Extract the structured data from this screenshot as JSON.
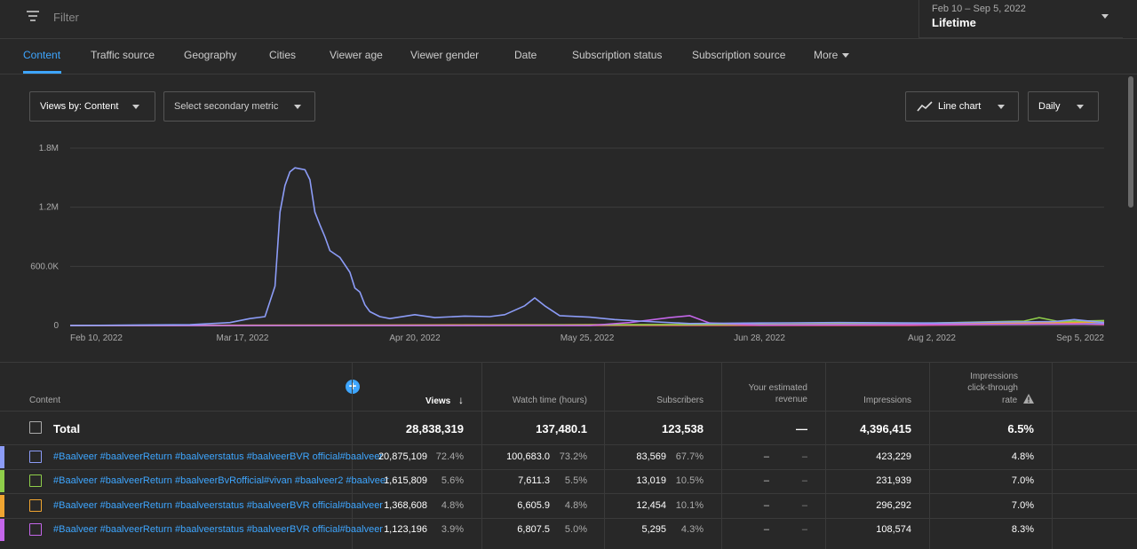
{
  "topbar": {
    "filter_placeholder": "Filter",
    "date_range": "Feb 10 – Sep 5, 2022",
    "date_label": "Lifetime"
  },
  "tabs": [
    {
      "label": "Content",
      "active": true
    },
    {
      "label": "Traffic source"
    },
    {
      "label": "Geography"
    },
    {
      "label": "Cities"
    },
    {
      "label": "Viewer age"
    },
    {
      "label": "Viewer gender"
    },
    {
      "label": "Date"
    },
    {
      "label": "Subscription status"
    },
    {
      "label": "Subscription source"
    },
    {
      "label": "More"
    }
  ],
  "controls": {
    "views_by": "Views by: Content",
    "secondary_metric": "Select secondary metric",
    "chart_type": "Line chart",
    "interval": "Daily"
  },
  "chart_data": {
    "type": "line",
    "y_ticks": [
      "1.8M",
      "1.2M",
      "600.0K",
      "0"
    ],
    "ylim": [
      0,
      1800000
    ],
    "x_tick_labels": [
      "Feb 10, 2022",
      "Mar 17, 2022",
      "Apr 20, 2022",
      "May 25, 2022",
      "Jun 28, 2022",
      "Aug 2, 2022",
      "Sep 5, 2022"
    ],
    "series": [
      {
        "color": "#8c9cf7",
        "points": [
          [
            "2022-02-10",
            0
          ],
          [
            "2022-02-24",
            5000
          ],
          [
            "2022-03-06",
            8000
          ],
          [
            "2022-03-14",
            30000
          ],
          [
            "2022-03-18",
            70000
          ],
          [
            "2022-03-21",
            90000
          ],
          [
            "2022-03-23",
            400000
          ],
          [
            "2022-03-24",
            1150000
          ],
          [
            "2022-03-25",
            1420000
          ],
          [
            "2022-03-26",
            1560000
          ],
          [
            "2022-03-27",
            1600000
          ],
          [
            "2022-03-28",
            1590000
          ],
          [
            "2022-03-29",
            1580000
          ],
          [
            "2022-03-30",
            1480000
          ],
          [
            "2022-03-31",
            1150000
          ],
          [
            "2022-04-01",
            1020000
          ],
          [
            "2022-04-02",
            900000
          ],
          [
            "2022-04-03",
            760000
          ],
          [
            "2022-04-05",
            690000
          ],
          [
            "2022-04-07",
            540000
          ],
          [
            "2022-04-08",
            380000
          ],
          [
            "2022-04-09",
            340000
          ],
          [
            "2022-04-10",
            210000
          ],
          [
            "2022-04-11",
            140000
          ],
          [
            "2022-04-13",
            90000
          ],
          [
            "2022-04-15",
            70000
          ],
          [
            "2022-04-20",
            110000
          ],
          [
            "2022-04-24",
            80000
          ],
          [
            "2022-04-30",
            95000
          ],
          [
            "2022-05-05",
            90000
          ],
          [
            "2022-05-08",
            110000
          ],
          [
            "2022-05-12",
            200000
          ],
          [
            "2022-05-14",
            280000
          ],
          [
            "2022-05-16",
            200000
          ],
          [
            "2022-05-19",
            100000
          ],
          [
            "2022-05-25",
            85000
          ],
          [
            "2022-05-30",
            60000
          ],
          [
            "2022-06-04",
            45000
          ],
          [
            "2022-06-14",
            20000
          ],
          [
            "2022-06-28",
            25000
          ],
          [
            "2022-07-14",
            30000
          ],
          [
            "2022-08-02",
            25000
          ],
          [
            "2022-08-16",
            35000
          ],
          [
            "2022-08-26",
            40000
          ],
          [
            "2022-08-30",
            60000
          ],
          [
            "2022-09-05",
            30000
          ]
        ]
      },
      {
        "color": "#c466ea",
        "points": [
          [
            "2022-02-10",
            0
          ],
          [
            "2022-05-25",
            0
          ],
          [
            "2022-06-02",
            30000
          ],
          [
            "2022-06-10",
            80000
          ],
          [
            "2022-06-14",
            100000
          ],
          [
            "2022-06-18",
            25000
          ],
          [
            "2022-06-28",
            5000
          ],
          [
            "2022-09-05",
            15000
          ]
        ]
      },
      {
        "color": "#8fce4a",
        "points": [
          [
            "2022-02-10",
            0
          ],
          [
            "2022-04-20",
            0
          ],
          [
            "2022-05-25",
            5000
          ],
          [
            "2022-07-14",
            15000
          ],
          [
            "2022-08-02",
            25000
          ],
          [
            "2022-08-20",
            45000
          ],
          [
            "2022-08-23",
            80000
          ],
          [
            "2022-08-27",
            40000
          ],
          [
            "2022-09-05",
            50000
          ]
        ]
      },
      {
        "color": "#f0a531",
        "points": [
          [
            "2022-02-10",
            0
          ],
          [
            "2022-04-20",
            5000
          ],
          [
            "2022-05-25",
            8000
          ],
          [
            "2022-06-28",
            10000
          ],
          [
            "2022-08-02",
            20000
          ],
          [
            "2022-08-25",
            30000
          ],
          [
            "2022-09-05",
            35000
          ]
        ]
      },
      {
        "color": "#e05872",
        "points": [
          [
            "2022-02-10",
            0
          ],
          [
            "2022-07-28",
            0
          ],
          [
            "2022-08-05",
            5000
          ],
          [
            "2022-08-30",
            20000
          ],
          [
            "2022-09-05",
            10000
          ]
        ]
      },
      {
        "color": "#56c6d6",
        "points": [
          [
            "2022-02-10",
            0
          ],
          [
            "2022-06-28",
            5000
          ],
          [
            "2022-08-02",
            10000
          ],
          [
            "2022-09-05",
            20000
          ]
        ]
      }
    ]
  },
  "table": {
    "headers": {
      "content": "Content",
      "views": "Views",
      "watch_time": "Watch time (hours)",
      "subscribers": "Subscribers",
      "revenue_line1": "Your estimated",
      "revenue_line2": "revenue",
      "impressions": "Impressions",
      "ctr_line1": "Impressions",
      "ctr_line2": "click-through",
      "ctr_line3": "rate"
    },
    "total": {
      "label": "Total",
      "views": "28,838,319",
      "watch_time": "137,480.1",
      "subscribers": "123,538",
      "revenue": "—",
      "impressions": "4,396,415",
      "ctr": "6.5%"
    },
    "rows": [
      {
        "color": "#8c9cf7",
        "title": "#Baalveer #baalveerReturn #baalveerstatus #baalveerBVR official#baalveer",
        "views": "20,875,109",
        "views_pct": "72.4%",
        "watch": "100,683.0",
        "watch_pct": "73.2%",
        "subs": "83,569",
        "subs_pct": "67.7%",
        "rev": "–",
        "rev2": "–",
        "impr": "423,229",
        "ctr": "4.8%"
      },
      {
        "color": "#8fce4a",
        "title": "#Baalveer #baalveerReturn #baalveerBvRofficial#vivan #baalveer2 #baalveer",
        "views": "1,615,809",
        "views_pct": "5.6%",
        "watch": "7,611.3",
        "watch_pct": "5.5%",
        "subs": "13,019",
        "subs_pct": "10.5%",
        "rev": "–",
        "rev2": "–",
        "impr": "231,939",
        "ctr": "7.0%"
      },
      {
        "color": "#f0a531",
        "title": "#Baalveer #baalveerReturn #baalveerstatus #baalveerBVR official#baalveer",
        "views": "1,368,608",
        "views_pct": "4.8%",
        "watch": "6,605.9",
        "watch_pct": "4.8%",
        "subs": "12,454",
        "subs_pct": "10.1%",
        "rev": "–",
        "rev2": "–",
        "impr": "296,292",
        "ctr": "7.0%"
      },
      {
        "color": "#c466ea",
        "title": "#Baalveer #baalveerReturn #baalveerstatus #baalveerBVR official#baalveer",
        "views": "1,123,196",
        "views_pct": "3.9%",
        "watch": "6,807.5",
        "watch_pct": "5.0%",
        "subs": "5,295",
        "subs_pct": "4.3%",
        "rev": "–",
        "rev2": "–",
        "impr": "108,574",
        "ctr": "8.3%"
      }
    ]
  }
}
